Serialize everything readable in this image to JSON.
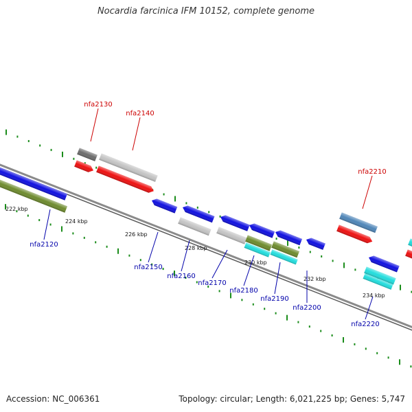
{
  "title": "Nocardia farcinica IFM 10152, complete genome",
  "footer": {
    "accession": "Accession: NC_006361",
    "stats": "Topology: circular; Length: 6,021,225 bp; Genes: 5,747"
  },
  "colors": {
    "backbone": "#8a8a8a",
    "tick": "#1a8c1a",
    "label_forward": "#cc0000",
    "label_reverse": "#0000aa",
    "cds": "#1010e0",
    "red_gene": "#ee1111",
    "gray_dark": "#6c6c6c",
    "gray_light": "#c4c4c4",
    "olive": "#6e8b2e",
    "cyan": "#22dddd",
    "steel": "#4f86b8"
  },
  "kbp_ticks": [
    "222 kbp",
    "224 kbp",
    "226 kbp",
    "228 kbp",
    "230 kbp",
    "232 kbp",
    "234 kbp"
  ],
  "genes": {
    "forward": [
      {
        "label": "nfa2130",
        "box": "gray_dark",
        "arrow": "red_gene"
      },
      {
        "label": "nfa2140",
        "box": "gray_light",
        "arrow": "red_gene"
      },
      {
        "label": "nfa2210",
        "box": "steel",
        "arrow": "red_gene"
      }
    ],
    "reverse": [
      {
        "label": "nfa2120",
        "arrow": "cds",
        "box": "olive"
      },
      {
        "label": "nfa2150",
        "arrow": "cds"
      },
      {
        "label": "nfa2160",
        "arrow": "cds",
        "box": "gray_light"
      },
      {
        "label": "nfa2170",
        "arrow": "cds",
        "box": "gray_light"
      },
      {
        "label": "nfa2180",
        "arrow": "cds",
        "box": "olive"
      },
      {
        "label": "nfa2190",
        "arrow": "cds",
        "box": "olive"
      },
      {
        "label": "nfa2200",
        "arrow": "cds"
      },
      {
        "label": "nfa2220",
        "arrow": "cds",
        "box": "cyan"
      }
    ]
  }
}
